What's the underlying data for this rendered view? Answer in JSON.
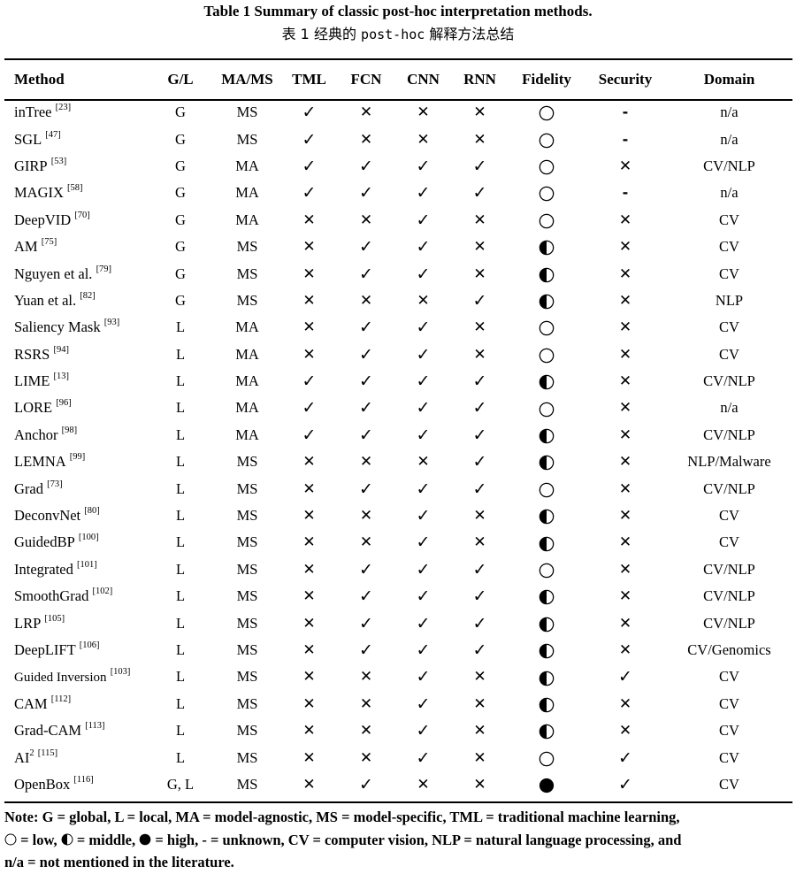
{
  "title_en": "Table 1 Summary of classic post-hoc interpretation methods.",
  "title_zh": {
    "prefix": "表 1 经典的 ",
    "code": "post-hoc",
    "suffix": " 解释方法总结"
  },
  "headers": [
    "Method",
    "G/L",
    "MA/MS",
    "TML",
    "FCN",
    "CNN",
    "RNN",
    "Fidelity",
    "Security",
    "Domain"
  ],
  "symbols": {
    "check": "✓",
    "cross": "✕",
    "dash": "-"
  },
  "rows": [
    {
      "method": "inTree",
      "ref": "[23]",
      "gl": "G",
      "mams": "MS",
      "tml": "check",
      "fcn": "cross",
      "cnn": "cross",
      "rnn": "cross",
      "fidelity": "low",
      "security": "dash",
      "domain": "n/a"
    },
    {
      "method": "SGL",
      "ref": "[47]",
      "gl": "G",
      "mams": "MS",
      "tml": "check",
      "fcn": "cross",
      "cnn": "cross",
      "rnn": "cross",
      "fidelity": "low",
      "security": "dash",
      "domain": "n/a"
    },
    {
      "method": "GIRP",
      "ref": "[53]",
      "gl": "G",
      "mams": "MA",
      "tml": "check",
      "fcn": "check",
      "cnn": "check",
      "rnn": "check",
      "fidelity": "low",
      "security": "cross",
      "domain": "CV/NLP"
    },
    {
      "method": "MAGIX",
      "ref": "[58]",
      "gl": "G",
      "mams": "MA",
      "tml": "check",
      "fcn": "check",
      "cnn": "check",
      "rnn": "check",
      "fidelity": "low",
      "security": "dash",
      "domain": "n/a"
    },
    {
      "method": "DeepVID",
      "ref": "[70]",
      "gl": "G",
      "mams": "MA",
      "tml": "cross",
      "fcn": "cross",
      "cnn": "check",
      "rnn": "cross",
      "fidelity": "low",
      "security": "cross",
      "domain": "CV"
    },
    {
      "method": "AM",
      "ref": "[75]",
      "gl": "G",
      "mams": "MS",
      "tml": "cross",
      "fcn": "check",
      "cnn": "check",
      "rnn": "cross",
      "fidelity": "middle",
      "security": "cross",
      "domain": "CV"
    },
    {
      "method": "Nguyen et al.",
      "ref": "[79]",
      "gl": "G",
      "mams": "MS",
      "tml": "cross",
      "fcn": "check",
      "cnn": "check",
      "rnn": "cross",
      "fidelity": "middle",
      "security": "cross",
      "domain": "CV"
    },
    {
      "method": "Yuan et al.",
      "ref": "[82]",
      "gl": "G",
      "mams": "MS",
      "tml": "cross",
      "fcn": "cross",
      "cnn": "cross",
      "rnn": "check",
      "fidelity": "middle",
      "security": "cross",
      "domain": "NLP"
    },
    {
      "method": "Saliency Mask",
      "ref": "[93]",
      "gl": "L",
      "mams": "MA",
      "tml": "cross",
      "fcn": "check",
      "cnn": "check",
      "rnn": "cross",
      "fidelity": "low",
      "security": "cross",
      "domain": "CV"
    },
    {
      "method": "RSRS",
      "ref": "[94]",
      "gl": "L",
      "mams": "MA",
      "tml": "cross",
      "fcn": "check",
      "cnn": "check",
      "rnn": "cross",
      "fidelity": "low",
      "security": "cross",
      "domain": "CV"
    },
    {
      "method": "LIME",
      "ref": "[13]",
      "gl": "L",
      "mams": "MA",
      "tml": "check",
      "fcn": "check",
      "cnn": "check",
      "rnn": "check",
      "fidelity": "middle",
      "security": "cross",
      "domain": "CV/NLP"
    },
    {
      "method": "LORE",
      "ref": "[96]",
      "gl": "L",
      "mams": "MA",
      "tml": "check",
      "fcn": "check",
      "cnn": "check",
      "rnn": "check",
      "fidelity": "low",
      "security": "cross",
      "domain": "n/a"
    },
    {
      "method": "Anchor",
      "ref": "[98]",
      "gl": "L",
      "mams": "MA",
      "tml": "check",
      "fcn": "check",
      "cnn": "check",
      "rnn": "check",
      "fidelity": "middle",
      "security": "cross",
      "domain": "CV/NLP"
    },
    {
      "method": "LEMNA",
      "ref": "[99]",
      "gl": "L",
      "mams": "MS",
      "tml": "cross",
      "fcn": "cross",
      "cnn": "cross",
      "rnn": "check",
      "fidelity": "middle",
      "security": "cross",
      "domain": "NLP/Malware"
    },
    {
      "method": "Grad",
      "ref": "[73]",
      "gl": "L",
      "mams": "MS",
      "tml": "cross",
      "fcn": "check",
      "cnn": "check",
      "rnn": "check",
      "fidelity": "low",
      "security": "cross",
      "domain": "CV/NLP"
    },
    {
      "method": "DeconvNet",
      "ref": "[80]",
      "gl": "L",
      "mams": "MS",
      "tml": "cross",
      "fcn": "cross",
      "cnn": "check",
      "rnn": "cross",
      "fidelity": "middle",
      "security": "cross",
      "domain": "CV"
    },
    {
      "method": "GuidedBP",
      "ref": "[100]",
      "gl": "L",
      "mams": "MS",
      "tml": "cross",
      "fcn": "cross",
      "cnn": "check",
      "rnn": "cross",
      "fidelity": "middle",
      "security": "cross",
      "domain": "CV"
    },
    {
      "method": "Integrated",
      "ref": "[101]",
      "gl": "L",
      "mams": "MS",
      "tml": "cross",
      "fcn": "check",
      "cnn": "check",
      "rnn": "check",
      "fidelity": "low",
      "security": "cross",
      "domain": "CV/NLP"
    },
    {
      "method": "SmoothGrad",
      "ref": "[102]",
      "gl": "L",
      "mams": "MS",
      "tml": "cross",
      "fcn": "check",
      "cnn": "check",
      "rnn": "check",
      "fidelity": "middle",
      "security": "cross",
      "domain": "CV/NLP"
    },
    {
      "method": "LRP",
      "ref": "[105]",
      "gl": "L",
      "mams": "MS",
      "tml": "cross",
      "fcn": "check",
      "cnn": "check",
      "rnn": "check",
      "fidelity": "middle",
      "security": "cross",
      "domain": "CV/NLP"
    },
    {
      "method": "DeepLIFT",
      "ref": "[106]",
      "gl": "L",
      "mams": "MS",
      "tml": "cross",
      "fcn": "check",
      "cnn": "check",
      "rnn": "check",
      "fidelity": "middle",
      "security": "cross",
      "domain": "CV/Genomics"
    },
    {
      "method": "Guided Inversion",
      "ref": "[103]",
      "small": true,
      "gl": "L",
      "mams": "MS",
      "tml": "cross",
      "fcn": "cross",
      "cnn": "check",
      "rnn": "cross",
      "fidelity": "middle",
      "security": "check",
      "domain": "CV"
    },
    {
      "method": "CAM",
      "ref": "[112]",
      "gl": "L",
      "mams": "MS",
      "tml": "cross",
      "fcn": "cross",
      "cnn": "check",
      "rnn": "cross",
      "fidelity": "middle",
      "security": "cross",
      "domain": "CV"
    },
    {
      "method": "Grad-CAM",
      "ref": "[113]",
      "gl": "L",
      "mams": "MS",
      "tml": "cross",
      "fcn": "cross",
      "cnn": "check",
      "rnn": "cross",
      "fidelity": "middle",
      "security": "cross",
      "domain": "CV"
    },
    {
      "method": "AI",
      "sup_method": "2",
      "ref": "[115]",
      "gl": "L",
      "mams": "MS",
      "tml": "cross",
      "fcn": "cross",
      "cnn": "check",
      "rnn": "cross",
      "fidelity": "low",
      "security": "check",
      "domain": "CV"
    },
    {
      "method": "OpenBox",
      "ref": "[116]",
      "gl": "G, L",
      "mams": "MS",
      "tml": "cross",
      "fcn": "check",
      "cnn": "cross",
      "rnn": "cross",
      "fidelity": "high",
      "security": "check",
      "domain": "CV"
    }
  ],
  "note": {
    "label": "Note:",
    "part1": "G = global, L = local, MA = model-agnostic, MS = model-specific, TML = traditional machine learning,",
    "low": " = low, ",
    "middle": " = middle, ",
    "high": " = high, ",
    "rest": "- = unknown, CV = computer vision, NLP = natural language processing, and",
    "line3": "n/a = not mentioned in the literature."
  }
}
